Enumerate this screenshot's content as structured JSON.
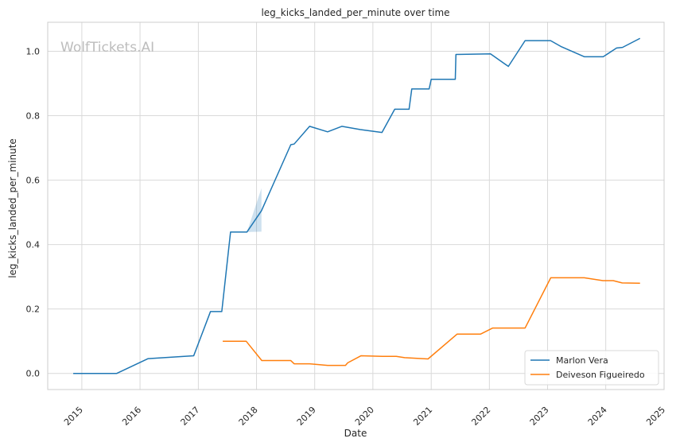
{
  "watermark": "WolfTickets.AI",
  "chart_data": {
    "type": "line",
    "title": "leg_kicks_landed_per_minute over time",
    "xlabel": "Date",
    "ylabel": "leg_kicks_landed_per_minute",
    "x_ticks": [
      "2015",
      "2016",
      "2017",
      "2018",
      "2019",
      "2020",
      "2021",
      "2022",
      "2023",
      "2024",
      "2025"
    ],
    "y_ticks": [
      "0.0",
      "0.2",
      "0.4",
      "0.6",
      "0.8",
      "1.0"
    ],
    "xlim": [
      "2014-06-01",
      "2025-01-01"
    ],
    "ylim": [
      -0.05,
      1.09
    ],
    "grid": true,
    "legend_position": "lower-right",
    "series": [
      {
        "name": "Marlon Vera",
        "color": "#1f77b4",
        "points": [
          [
            "2014-11-08",
            0.0
          ],
          [
            "2015-04-01",
            0.0
          ],
          [
            "2015-08-08",
            0.0
          ],
          [
            "2016-02-21",
            0.046
          ],
          [
            "2016-12-03",
            0.055
          ],
          [
            "2017-03-18",
            0.192
          ],
          [
            "2017-05-28",
            0.192
          ],
          [
            "2017-07-22",
            0.439
          ],
          [
            "2017-11-02",
            0.439
          ],
          [
            "2018-02-01",
            0.505
          ],
          [
            "2018-08-04",
            0.71
          ],
          [
            "2018-08-25",
            0.712
          ],
          [
            "2018-11-30",
            0.767
          ],
          [
            "2019-03-23",
            0.75
          ],
          [
            "2019-06-20",
            0.767
          ],
          [
            "2019-10-15",
            0.757
          ],
          [
            "2020-02-27",
            0.748
          ],
          [
            "2020-05-17",
            0.82
          ],
          [
            "2020-08-15",
            0.82
          ],
          [
            "2020-09-01",
            0.883
          ],
          [
            "2020-12-19",
            0.883
          ],
          [
            "2021-01-01",
            0.913
          ],
          [
            "2021-06-01",
            0.913
          ],
          [
            "2021-06-05",
            0.99
          ],
          [
            "2022-01-08",
            0.992
          ],
          [
            "2022-04-30",
            0.953
          ],
          [
            "2022-08-13",
            1.033
          ],
          [
            "2023-01-20",
            1.033
          ],
          [
            "2023-03-25",
            1.015
          ],
          [
            "2023-08-19",
            0.983
          ],
          [
            "2023-12-16",
            0.983
          ],
          [
            "2024-03-09",
            1.01
          ],
          [
            "2024-04-15",
            1.012
          ],
          [
            "2024-08-03",
            1.04
          ]
        ],
        "band": [
          [
            "2017-11-02",
            0.439,
            0.439
          ],
          [
            "2018-02-01",
            0.44,
            0.575
          ]
        ]
      },
      {
        "name": "Deiveson Figueiredo",
        "color": "#ff7f0e",
        "points": [
          [
            "2017-06-03",
            0.1
          ],
          [
            "2017-10-28",
            0.1
          ],
          [
            "2018-02-03",
            0.04
          ],
          [
            "2018-08-04",
            0.04
          ],
          [
            "2018-08-25",
            0.03
          ],
          [
            "2018-11-30",
            0.03
          ],
          [
            "2019-03-23",
            0.025
          ],
          [
            "2019-07-13",
            0.025
          ],
          [
            "2019-07-27",
            0.033
          ],
          [
            "2019-10-19",
            0.055
          ],
          [
            "2020-02-29",
            0.053
          ],
          [
            "2020-05-27",
            0.053
          ],
          [
            "2020-07-18",
            0.049
          ],
          [
            "2020-12-12",
            0.045
          ],
          [
            "2021-06-12",
            0.122
          ],
          [
            "2021-11-06",
            0.122
          ],
          [
            "2022-01-22",
            0.141
          ],
          [
            "2022-08-13",
            0.141
          ],
          [
            "2023-01-21",
            0.297
          ],
          [
            "2023-08-19",
            0.297
          ],
          [
            "2023-12-14",
            0.288
          ],
          [
            "2024-02-17",
            0.288
          ],
          [
            "2024-04-13",
            0.281
          ],
          [
            "2024-08-03",
            0.28
          ]
        ]
      }
    ]
  }
}
